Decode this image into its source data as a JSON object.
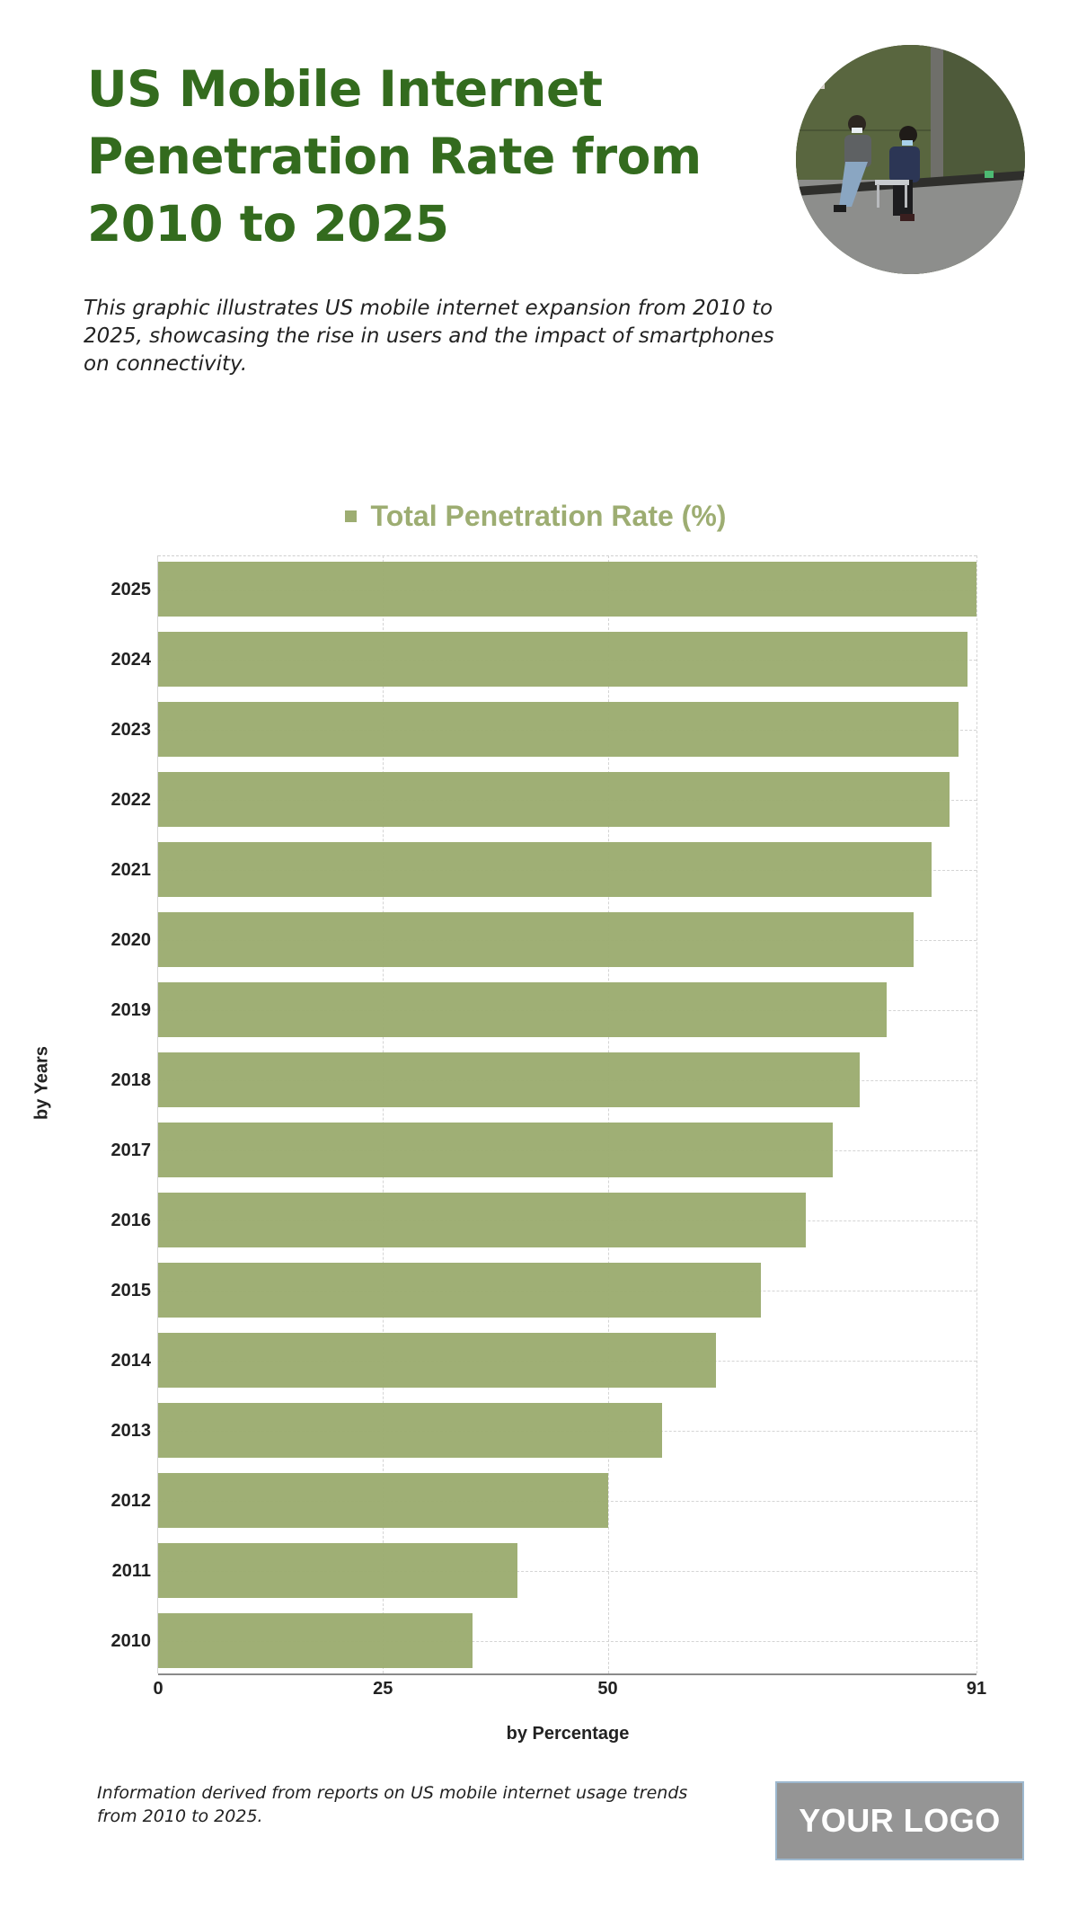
{
  "header": {
    "title_lines": [
      "US Mobile Internet",
      "Penetration Rate from",
      "2010 to 2025"
    ],
    "subtitle": "This graphic illustrates US mobile internet expansion from 2010 to 2025, showcasing the rise in users and the impact of smartphones on connectivity.",
    "photo_alt": "Two people sitting against a green wall looking at smartphones"
  },
  "legend": {
    "label": "Total Penetration Rate (%)",
    "color": "#9dad72"
  },
  "axes": {
    "xlabel": "by Percentage",
    "ylabel": "by Years",
    "xticks": [
      "0",
      "25",
      "50",
      "91"
    ]
  },
  "footer": {
    "note": "Information derived from reports on US mobile internet usage trends from 2010 to 2025.",
    "logo_text": "YOUR LOGO"
  },
  "colors": {
    "title": "#336b1e",
    "bar": "#9dad72",
    "logo_bg": "#959595"
  },
  "chart_data": {
    "type": "bar",
    "orientation": "horizontal",
    "title": "US Mobile Internet Penetration Rate from 2010 to 2025",
    "subtitle": "This graphic illustrates US mobile internet expansion from 2010 to 2025, showcasing the rise in users and the impact of smartphones on connectivity.",
    "categories": [
      "2025",
      "2024",
      "2023",
      "2022",
      "2021",
      "2020",
      "2019",
      "2018",
      "2017",
      "2016",
      "2015",
      "2014",
      "2013",
      "2012",
      "2011",
      "2010"
    ],
    "series": [
      {
        "name": "Total Penetration Rate (%)",
        "color": "#9dad72",
        "values": [
          91,
          90,
          89,
          88,
          86,
          84,
          81,
          78,
          75,
          72,
          67,
          62,
          56,
          50,
          40,
          35
        ]
      }
    ],
    "xlabel": "by Percentage",
    "ylabel": "by Years",
    "xlim": [
      0,
      91
    ],
    "xticks": [
      0,
      25,
      50,
      91
    ],
    "grid": true,
    "legend_position": "top"
  }
}
